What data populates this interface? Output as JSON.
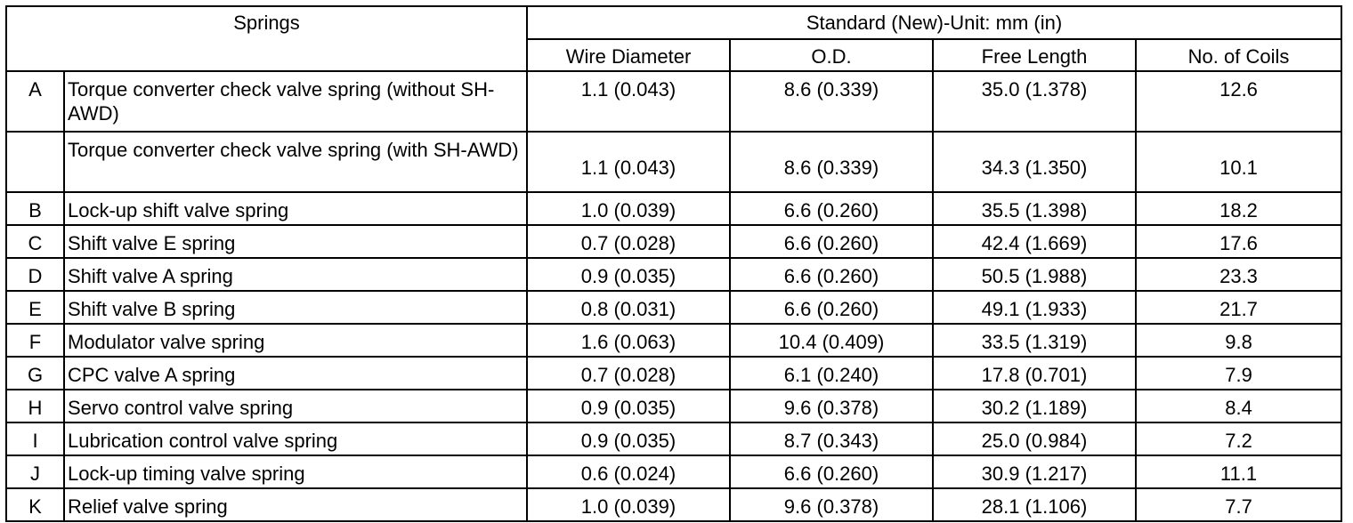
{
  "header": {
    "springs": "Springs",
    "standard": "Standard (New)-Unit: mm (in)",
    "columns": [
      "Wire Diameter",
      "O.D.",
      "Free Length",
      "No. of Coils"
    ]
  },
  "rows": [
    {
      "letter": "A",
      "name": "Torque converter check valve spring (without SH-AWD)",
      "wire": "1.1 (0.043)",
      "od": "8.6 (0.339)",
      "length": "35.0 (1.378)",
      "coils": "12.6"
    },
    {
      "letter": "",
      "name": "Torque converter check valve spring (with SH-AWD)",
      "wire": "1.1 (0.043)",
      "od": "8.6 (0.339)",
      "length": "34.3 (1.350)",
      "coils": "10.1"
    },
    {
      "letter": "B",
      "name": "Lock-up shift valve spring",
      "wire": "1.0 (0.039)",
      "od": "6.6 (0.260)",
      "length": "35.5 (1.398)",
      "coils": "18.2"
    },
    {
      "letter": "C",
      "name": "Shift valve E spring",
      "wire": "0.7 (0.028)",
      "od": "6.6 (0.260)",
      "length": "42.4 (1.669)",
      "coils": "17.6"
    },
    {
      "letter": "D",
      "name": "Shift valve A spring",
      "wire": "0.9 (0.035)",
      "od": "6.6 (0.260)",
      "length": "50.5 (1.988)",
      "coils": "23.3"
    },
    {
      "letter": "E",
      "name": "Shift valve B spring",
      "wire": "0.8 (0.031)",
      "od": "6.6 (0.260)",
      "length": "49.1 (1.933)",
      "coils": "21.7"
    },
    {
      "letter": "F",
      "name": "Modulator valve spring",
      "wire": "1.6 (0.063)",
      "od": "10.4 (0.409)",
      "length": "33.5 (1.319)",
      "coils": "9.8"
    },
    {
      "letter": "G",
      "name": "CPC valve A spring",
      "wire": "0.7 (0.028)",
      "od": "6.1 (0.240)",
      "length": "17.8 (0.701)",
      "coils": "7.9"
    },
    {
      "letter": "H",
      "name": "Servo control valve spring",
      "wire": "0.9 (0.035)",
      "od": "9.6 (0.378)",
      "length": "30.2 (1.189)",
      "coils": "8.4"
    },
    {
      "letter": "I",
      "name": "Lubrication control valve spring",
      "wire": "0.9 (0.035)",
      "od": "8.7 (0.343)",
      "length": "25.0 (0.984)",
      "coils": "7.2"
    },
    {
      "letter": "J",
      "name": "Lock-up timing valve spring",
      "wire": "0.6 (0.024)",
      "od": "6.6 (0.260)",
      "length": "30.9 (1.217)",
      "coils": "11.1"
    },
    {
      "letter": "K",
      "name": "Relief valve spring",
      "wire": "1.0 (0.039)",
      "od": "9.6 (0.378)",
      "length": "28.1 (1.106)",
      "coils": "7.7"
    }
  ]
}
